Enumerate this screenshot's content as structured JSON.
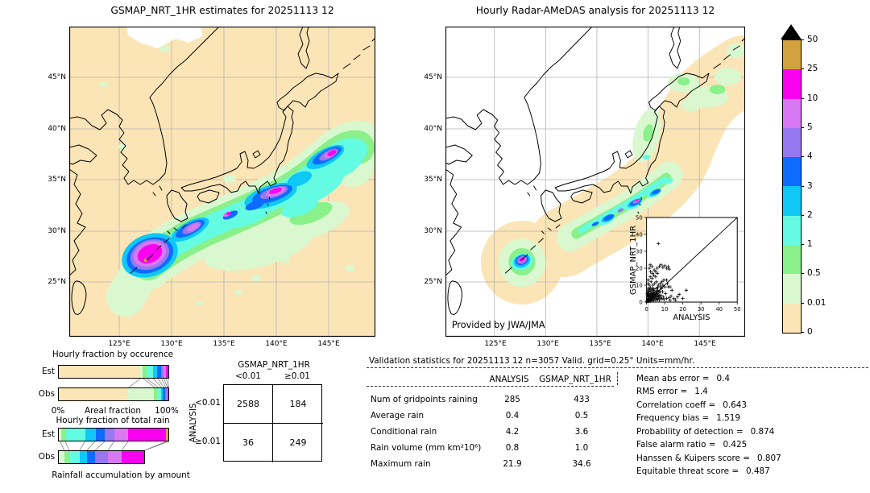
{
  "chart_data": {
    "type": "composite_validation_figure",
    "units": "mm/hr",
    "maps": [
      {
        "type": "map",
        "title": "GSMAP_NRT_1HR estimates for 20251113 12",
        "lat_ticks": [
          "45°N",
          "40°N",
          "35°N",
          "30°N",
          "25°N"
        ],
        "lon_ticks": [
          "125°E",
          "130°E",
          "135°E",
          "140°E",
          "145°E"
        ]
      },
      {
        "type": "map",
        "title": "Hourly Radar-AMeDAS analysis for 20251113 12",
        "lat_ticks": [
          "45°N",
          "40°N",
          "35°N",
          "30°N",
          "25°N"
        ],
        "lon_ticks": [
          "125°E",
          "130°E",
          "135°E",
          "140°E",
          "145°E"
        ],
        "credit": "Provided by JWA/JMA"
      }
    ],
    "colorbar": {
      "labels": [
        "50",
        "25",
        "10",
        "5",
        "4",
        "3",
        "2",
        "1",
        "0.5",
        "0.01",
        "0"
      ],
      "colors_top_to_bottom": [
        "#d2a23f",
        "#fa00f0",
        "#d878f2",
        "#9678f0",
        "#0d6bff",
        "#0fc8f5",
        "#63fce3",
        "#8af08a",
        "#d9f8cf",
        "#fbe5b6"
      ],
      "over_color": "#000000"
    },
    "occurrence": {
      "type": "bar",
      "title": "Hourly fraction by occurence",
      "row_labels": [
        "Est",
        "Obs"
      ],
      "xlabel": "Areal fraction",
      "x0_label": "0%",
      "x1_label": "100%",
      "levels_mm_hr": [
        "0-0.01",
        "0.01-0.5",
        "0.5-1",
        "1-2",
        "2-3",
        "3-4",
        "4-5",
        "5-10",
        "10-25"
      ],
      "est_segments": [
        [
          "#fbe5b6",
          0.742
        ],
        [
          "#d9f8cf",
          0.025
        ],
        [
          "#8af08a",
          0.032
        ],
        [
          "#63fce3",
          0.058
        ],
        [
          "#0fc8f5",
          0.042
        ],
        [
          "#0d6bff",
          0.032
        ],
        [
          "#9678f0",
          0.022
        ],
        [
          "#d878f2",
          0.022
        ],
        [
          "#fa00f0",
          0.025
        ]
      ],
      "obs_segments": [
        [
          "#fbe5b6",
          0.635
        ],
        [
          "#d9f8cf",
          0.235
        ],
        [
          "#8af08a",
          0.03
        ],
        [
          "#63fce3",
          0.032
        ],
        [
          "#0fc8f5",
          0.02
        ],
        [
          "#0d6bff",
          0.02
        ],
        [
          "#9678f0",
          0.012
        ],
        [
          "#d878f2",
          0.008
        ],
        [
          "#fa00f0",
          0.008
        ]
      ]
    },
    "total_rain": {
      "type": "bar",
      "title": "Hourly fraction of total rain",
      "caption": "Rainfall accumulation by amount",
      "row_labels": [
        "Est",
        "Obs"
      ],
      "levels_mm_hr": [
        "0.01-0.5",
        "0.5-1",
        "1-2",
        "2-3",
        "3-4",
        "4-5",
        "5-10",
        "10-25",
        "25-50"
      ],
      "est_segments": [
        [
          "#d9f8cf",
          0.02
        ],
        [
          "#8af08a",
          0.045
        ],
        [
          "#63fce3",
          0.175
        ],
        [
          "#0fc8f5",
          0.095
        ],
        [
          "#0d6bff",
          0.085
        ],
        [
          "#9678f0",
          0.085
        ],
        [
          "#d878f2",
          0.125
        ],
        [
          "#fa00f0",
          0.345
        ],
        [
          "#d2a23f",
          0.025
        ]
      ],
      "obs_segments": [
        [
          "#d9f8cf",
          0.055
        ],
        [
          "#8af08a",
          0.045
        ],
        [
          "#63fce3",
          0.095
        ],
        [
          "#0fc8f5",
          0.065
        ],
        [
          "#0d6bff",
          0.075
        ],
        [
          "#9678f0",
          0.115
        ],
        [
          "#d878f2",
          0.125
        ],
        [
          "#fa00f0",
          0.205
        ]
      ]
    },
    "contingency": {
      "type": "table",
      "col_group": "GSMAP_NRT_1HR",
      "row_group": "ANALYSIS",
      "col_labels": [
        "<0.01",
        "≥0.01"
      ],
      "row_labels": [
        "<0.01",
        "≥0.01"
      ],
      "values": [
        [
          "2588",
          "184"
        ],
        [
          "36",
          "249"
        ]
      ]
    },
    "validation": {
      "type": "table",
      "header": "Validation statistics for 20251113 12  n=3057 Valid. grid=0.25° Units=mm/hr.",
      "columns": [
        "ANALYSIS",
        "GSMAP_NRT_1HR"
      ],
      "rows": [
        {
          "label": "Num of gridpoints raining",
          "analysis": "285",
          "gsmap": "433"
        },
        {
          "label": "Average rain",
          "analysis": "0.4",
          "gsmap": "0.5"
        },
        {
          "label": "Conditional rain",
          "analysis": "4.2",
          "gsmap": "3.6"
        },
        {
          "label": "Rain volume (mm km²10⁶)",
          "analysis": "0.8",
          "gsmap": "1.0"
        },
        {
          "label": "Maximum rain",
          "analysis": "21.9",
          "gsmap": "34.6"
        }
      ],
      "scores": [
        {
          "label": "Mean abs error =",
          "value": "0.4"
        },
        {
          "label": "RMS error =",
          "value": "1.4"
        },
        {
          "label": "Correlation coeff =",
          "value": "0.643"
        },
        {
          "label": "Frequency bias =",
          "value": "1.519"
        },
        {
          "label": "Probability of detection =",
          "value": "0.874"
        },
        {
          "label": "False alarm ratio =",
          "value": "0.425"
        },
        {
          "label": "Hanssen & Kuipers score =",
          "value": "0.807"
        },
        {
          "label": "Equitable threat score =",
          "value": "0.487"
        }
      ]
    },
    "inset_scatter": {
      "type": "scatter",
      "xlabel": "ANALYSIS",
      "ylabel": "GSMAP_NRT_1HR",
      "xlim": [
        0,
        50
      ],
      "ylim": [
        0,
        50
      ],
      "ticks": [
        0,
        10,
        20,
        30,
        40,
        50
      ],
      "points": [
        [
          0.3,
          0.4
        ],
        [
          0.5,
          1.1
        ],
        [
          0.6,
          2.1
        ],
        [
          0.8,
          0.7
        ],
        [
          1,
          1.6
        ],
        [
          1,
          3.1
        ],
        [
          1.2,
          0.5
        ],
        [
          1.4,
          2.2
        ],
        [
          1.5,
          4.1
        ],
        [
          1.6,
          1
        ],
        [
          1.8,
          3.3
        ],
        [
          2,
          0.6
        ],
        [
          2,
          2.1
        ],
        [
          2.2,
          4.6
        ],
        [
          2.4,
          1.4
        ],
        [
          2.5,
          3
        ],
        [
          2.6,
          5.1
        ],
        [
          2.8,
          2.4
        ],
        [
          3,
          0.8
        ],
        [
          3,
          4
        ],
        [
          3.2,
          1.8
        ],
        [
          3.4,
          3.5
        ],
        [
          3.5,
          5.6
        ],
        [
          3.6,
          2.6
        ],
        [
          3.8,
          4.4
        ],
        [
          4,
          1.2
        ],
        [
          4,
          3
        ],
        [
          4.2,
          5
        ],
        [
          4.4,
          2
        ],
        [
          4.5,
          4.1
        ],
        [
          4.6,
          6
        ],
        [
          4.8,
          3.6
        ],
        [
          5,
          1
        ],
        [
          5,
          2.9
        ],
        [
          5.2,
          4.7
        ],
        [
          5.4,
          6.5
        ],
        [
          5.6,
          2.2
        ],
        [
          5.8,
          5.1
        ],
        [
          6,
          3.4
        ],
        [
          6,
          1.6
        ],
        [
          6.2,
          7
        ],
        [
          6.4,
          4.2
        ],
        [
          6.6,
          2.9
        ],
        [
          6.8,
          5.8
        ],
        [
          7,
          1.2
        ],
        [
          7.2,
          3.9
        ],
        [
          7.4,
          6.2
        ],
        [
          7.6,
          2.4
        ],
        [
          0.4,
          5
        ],
        [
          0.6,
          6.6
        ],
        [
          0.9,
          8
        ],
        [
          1.3,
          6.1
        ],
        [
          1.7,
          7.5
        ],
        [
          2.1,
          8.5
        ],
        [
          2.9,
          7.1
        ],
        [
          3.3,
          8
        ],
        [
          4.1,
          7.7
        ],
        [
          1.1,
          5.2
        ],
        [
          0.5,
          3.8
        ],
        [
          2.3,
          6.3
        ],
        [
          5.5,
          8.1
        ],
        [
          6.1,
          8.6
        ],
        [
          3.9,
          6.9
        ],
        [
          0.7,
          4.4
        ],
        [
          8,
          4
        ],
        [
          8.4,
          2
        ],
        [
          8.8,
          6.1
        ],
        [
          9.2,
          3
        ],
        [
          9.6,
          1.5
        ],
        [
          8.2,
          8
        ],
        [
          7.8,
          9.1
        ],
        [
          9,
          10
        ],
        [
          10,
          9
        ],
        [
          10.5,
          5
        ],
        [
          11,
          2.1
        ],
        [
          11.5,
          11
        ],
        [
          12,
          9
        ],
        [
          12.5,
          2.5
        ],
        [
          13,
          1
        ],
        [
          13.5,
          3.5
        ],
        [
          14,
          7
        ],
        [
          15,
          2
        ],
        [
          16,
          1.2
        ],
        [
          17,
          3
        ],
        [
          18,
          4.5
        ],
        [
          20,
          2.1
        ],
        [
          21.9,
          7
        ],
        [
          0.8,
          11
        ],
        [
          1,
          13
        ],
        [
          1.5,
          10
        ],
        [
          1.5,
          20
        ],
        [
          2,
          15
        ],
        [
          2,
          22
        ],
        [
          2.5,
          12
        ],
        [
          3,
          14
        ],
        [
          3,
          21
        ],
        [
          3.5,
          10
        ],
        [
          4,
          16
        ],
        [
          4.5,
          11
        ],
        [
          5,
          15
        ],
        [
          5,
          18
        ],
        [
          5.5,
          12
        ],
        [
          6,
          17
        ],
        [
          6.5,
          10
        ],
        [
          7.5,
          11
        ],
        [
          8.5,
          12
        ],
        [
          9.5,
          13
        ],
        [
          11,
          13
        ],
        [
          13,
          9
        ],
        [
          2.2,
          18
        ],
        [
          3.2,
          17
        ],
        [
          4.2,
          19
        ],
        [
          5.8,
          20
        ],
        [
          7,
          21
        ],
        [
          8,
          22
        ],
        [
          9,
          20.5
        ],
        [
          10,
          21.5
        ],
        [
          11,
          20
        ],
        [
          12,
          21
        ],
        [
          12.5,
          19.5
        ],
        [
          6.5,
          34.6
        ]
      ]
    }
  }
}
